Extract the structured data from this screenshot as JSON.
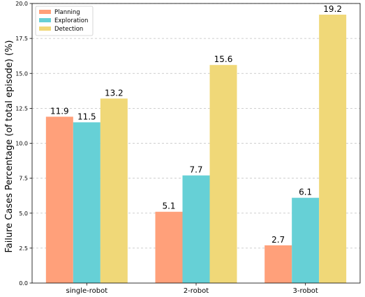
{
  "chart_data": {
    "type": "bar",
    "categories": [
      "single-robot",
      "2-robot",
      "3-robot"
    ],
    "series": [
      {
        "name": "Planning",
        "values": [
          11.9,
          5.1,
          2.7
        ],
        "color": "#FFA07A"
      },
      {
        "name": "Exploration",
        "values": [
          11.5,
          7.7,
          6.1
        ],
        "color": "#66D0D6"
      },
      {
        "name": "Detection",
        "values": [
          13.2,
          15.6,
          19.2
        ],
        "color": "#F0D878"
      }
    ],
    "data_labels": [
      [
        "11.9",
        "5.1",
        "2.7"
      ],
      [
        "11.5",
        "7.7",
        "6.1"
      ],
      [
        "13.2",
        "15.6",
        "19.2"
      ]
    ],
    "title": "",
    "xlabel": "",
    "ylabel": "Failure Cases Percentage (of total episode) (%)",
    "ylim": [
      0,
      20
    ],
    "yticks": [
      0,
      2.5,
      5,
      7.5,
      10,
      12.5,
      15,
      17.5,
      20
    ],
    "ytick_labels": [
      "0.0",
      "2.5",
      "5.0",
      "7.5",
      "10.0",
      "12.5",
      "15.0",
      "17.5",
      "20.0"
    ],
    "grid": "y-dashed",
    "legend_position": "top-left"
  }
}
